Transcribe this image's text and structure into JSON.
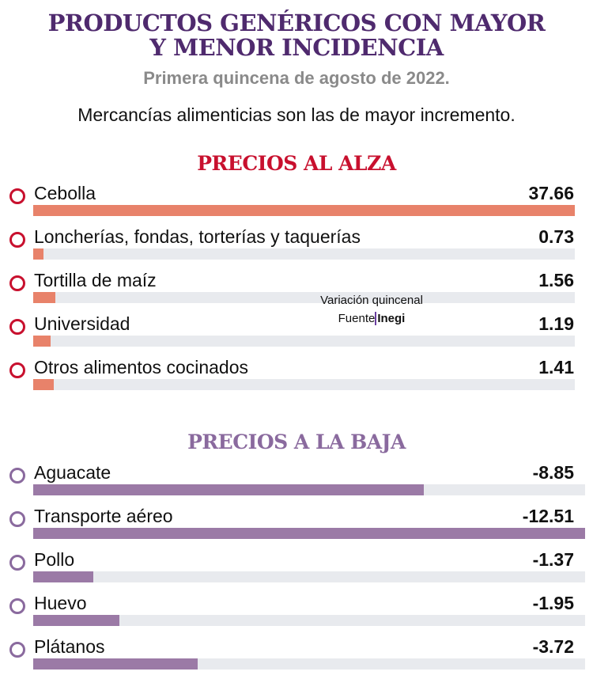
{
  "title_line1": "PRODUCTOS GENÉRICOS CON MAYOR",
  "title_line2": "Y MENOR INCIDENCIA",
  "subtitle": "Primera quincena de agosto de 2022.",
  "description": "Mercancías alimenticias son las de mayor incremento.",
  "note": {
    "label": "Variación quincenal",
    "source_prefix": "Fuente",
    "source": "Inegi"
  },
  "colors": {
    "title": "#4f2a6e",
    "up_heading": "#c8102e",
    "up_bar": "#e8826a",
    "down_heading": "#8a6a9e",
    "down_bar": "#9b7aa6",
    "track": "#e8eaee"
  },
  "chart_data": [
    {
      "type": "bar",
      "title": "PRECIOS AL ALZA",
      "categories": [
        "Cebolla",
        "Loncherías, fondas, torterías y taquerías",
        "Tortilla de maíz",
        "Universidad",
        "Otros alimentos cocinados"
      ],
      "values": [
        37.66,
        0.73,
        1.56,
        1.19,
        1.41
      ],
      "labels": [
        "37.66",
        "0.73",
        "1.56",
        "1.19",
        "1.41"
      ]
    },
    {
      "type": "bar",
      "title": "PRECIOS A LA BAJA",
      "categories": [
        "Aguacate",
        "Transporte aéreo",
        "Pollo",
        "Huevo",
        "Plátanos"
      ],
      "values": [
        -8.85,
        -12.51,
        -1.37,
        -1.95,
        -3.72
      ],
      "labels": [
        "-8.85",
        "-12.51",
        "-1.37",
        "-1.95",
        "-3.72"
      ]
    }
  ]
}
